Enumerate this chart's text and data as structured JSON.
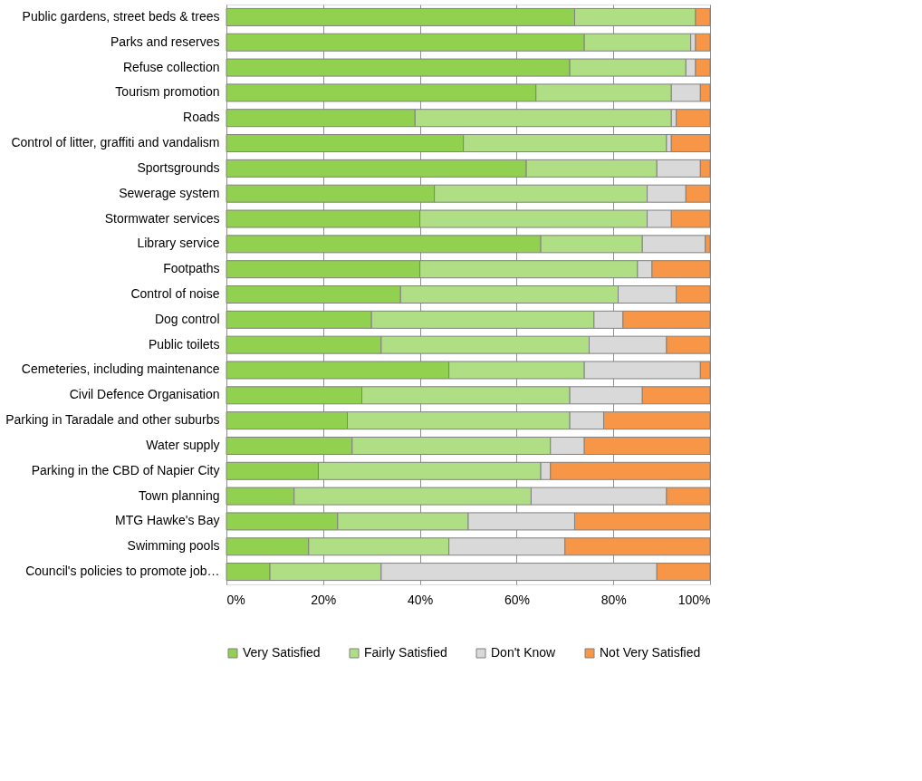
{
  "chart_data": {
    "type": "bar",
    "orientation": "horizontal",
    "stacked": true,
    "categories": [
      "Public gardens, street beds & trees",
      "Parks and reserves",
      "Refuse collection",
      "Tourism promotion",
      "Roads",
      "Control of litter, graffiti and vandalism",
      "Sportsgrounds",
      "Sewerage system",
      "Stormwater services",
      "Library service",
      "Footpaths",
      "Control of noise",
      "Dog control",
      "Public toilets",
      "Cemeteries, including maintenance",
      "Civil Defence Organisation",
      "Parking in Taradale and other suburbs",
      "Water supply",
      "Parking in the CBD of Napier City",
      "Town planning",
      "MTG Hawke's Bay",
      "Swimming pools",
      "Council's policies to promote job…"
    ],
    "series": [
      {
        "name": "Very Satisfied",
        "color": "#92d050",
        "values": [
          72,
          74,
          71,
          64,
          39,
          49,
          62,
          43,
          40,
          65,
          40,
          36,
          30,
          32,
          46,
          28,
          25,
          26,
          19,
          14,
          23,
          17,
          9
        ]
      },
      {
        "name": "Fairly Satisfied",
        "color": "#b0de84",
        "values": [
          25,
          22,
          24,
          28,
          53,
          42,
          27,
          44,
          47,
          21,
          45,
          45,
          46,
          43,
          28,
          43,
          46,
          41,
          46,
          49,
          27,
          29,
          23
        ]
      },
      {
        "name": "Don't Know",
        "color": "#d9d9d9",
        "values": [
          null,
          1,
          2,
          6,
          1,
          1,
          9,
          8,
          5,
          13,
          3,
          12,
          6,
          16,
          24,
          15,
          7,
          7,
          2,
          28,
          22,
          24,
          57
        ]
      },
      {
        "name": "Not Very Satisfied",
        "color": "#f79646",
        "values": [
          3,
          3,
          3,
          2,
          7,
          8,
          2,
          5,
          8,
          1,
          12,
          7,
          18,
          9,
          2,
          14,
          22,
          26,
          33,
          9,
          28,
          30,
          11
        ]
      }
    ],
    "xlim": [
      0,
      100
    ],
    "xticks": [
      {
        "value": 0,
        "label": "0%"
      },
      {
        "value": 20,
        "label": "20%"
      },
      {
        "value": 40,
        "label": "40%"
      },
      {
        "value": 60,
        "label": "60%"
      },
      {
        "value": 80,
        "label": "80%"
      },
      {
        "value": 100,
        "label": "100%"
      }
    ],
    "grid": "x",
    "legend": "bottom"
  }
}
